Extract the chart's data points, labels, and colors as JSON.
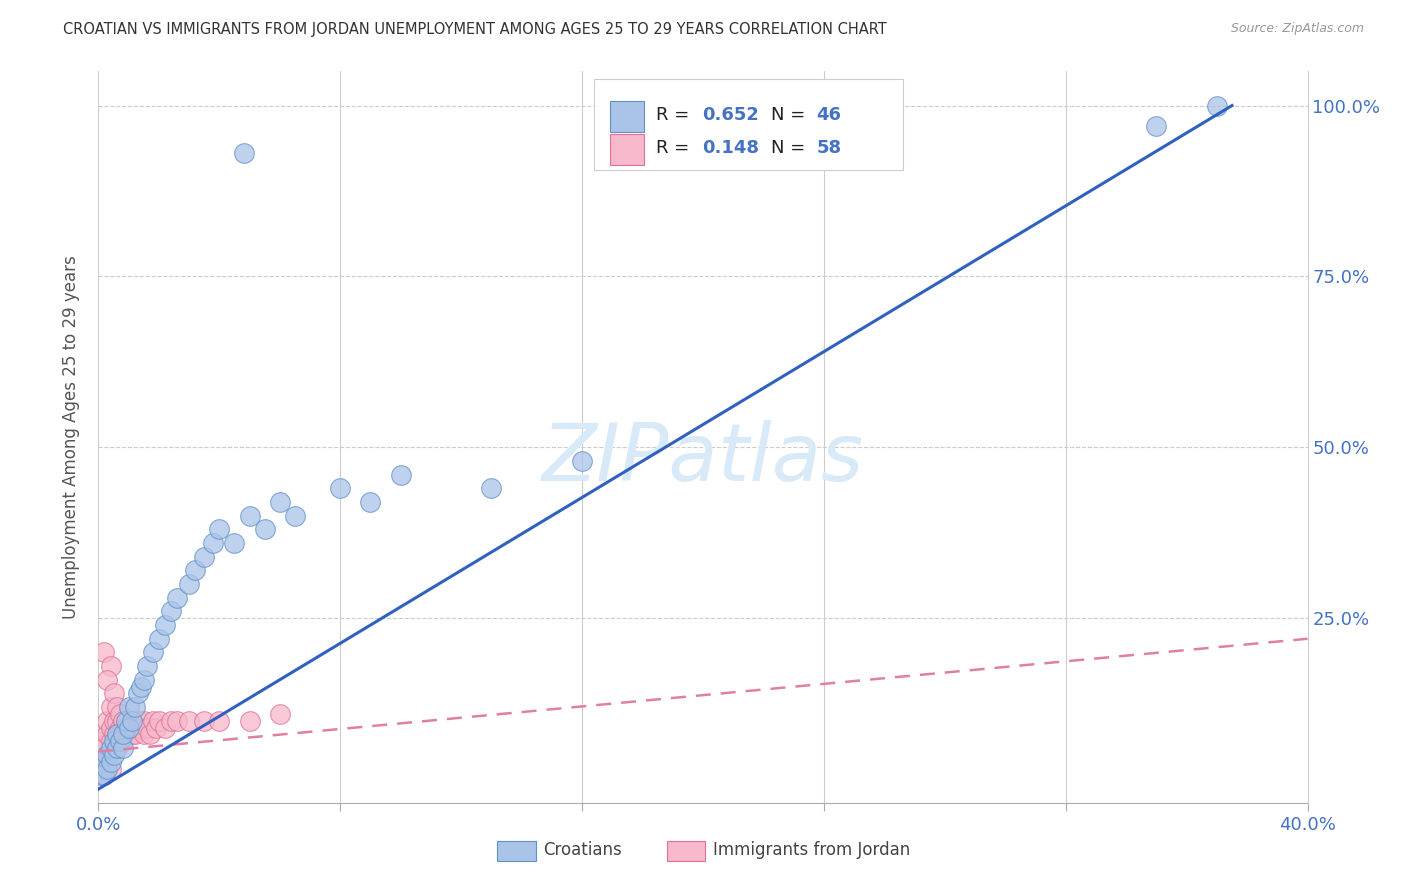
{
  "title": "CROATIAN VS IMMIGRANTS FROM JORDAN UNEMPLOYMENT AMONG AGES 25 TO 29 YEARS CORRELATION CHART",
  "source": "Source: ZipAtlas.com",
  "ylabel": "Unemployment Among Ages 25 to 29 years",
  "xlim": [
    0.0,
    0.4
  ],
  "ylim": [
    -0.02,
    1.05
  ],
  "xtick_positions": [
    0.0,
    0.08,
    0.16,
    0.24,
    0.32,
    0.4
  ],
  "xtick_labels": [
    "0.0%",
    "",
    "",
    "",
    "",
    "40.0%"
  ],
  "ytick_positions": [
    0.0,
    0.25,
    0.5,
    0.75,
    1.0
  ],
  "ytick_labels_right": [
    "",
    "25.0%",
    "50.0%",
    "75.0%",
    "100.0%"
  ],
  "croatians_fill": "#aac4e8",
  "croatians_edge": "#6090c8",
  "jordan_fill": "#f7b8cc",
  "jordan_edge": "#e07090",
  "blue_line_color": "#3060c0",
  "pink_line_color": "#e080a0",
  "axis_color": "#4472c4",
  "title_color": "#333333",
  "source_color": "#999999",
  "ylabel_color": "#555555",
  "grid_color": "#cccccc",
  "legend_text_color": "#222222",
  "legend_value_color": "#4472c4",
  "watermark_color": "#d8eaf8",
  "legend_label1": "Croatians",
  "legend_label2": "Immigrants from Jordan",
  "cr_line_x0": 0.0,
  "cr_line_y0": 0.0,
  "cr_line_x1": 0.375,
  "cr_line_y1": 1.0,
  "jo_line_x0": 0.0,
  "jo_line_y0": 0.055,
  "jo_line_x1": 0.4,
  "jo_line_y1": 0.22,
  "cr_scatter_x": [
    0.001,
    0.002,
    0.002,
    0.003,
    0.003,
    0.004,
    0.004,
    0.005,
    0.005,
    0.006,
    0.006,
    0.007,
    0.008,
    0.008,
    0.009,
    0.01,
    0.01,
    0.011,
    0.012,
    0.013,
    0.014,
    0.015,
    0.016,
    0.018,
    0.02,
    0.022,
    0.024,
    0.026,
    0.03,
    0.032,
    0.035,
    0.038,
    0.04,
    0.045,
    0.05,
    0.055,
    0.06,
    0.065,
    0.08,
    0.09,
    0.1,
    0.13,
    0.16,
    0.048,
    0.37,
    0.35
  ],
  "cr_scatter_y": [
    0.02,
    0.04,
    0.02,
    0.05,
    0.03,
    0.04,
    0.06,
    0.05,
    0.07,
    0.06,
    0.08,
    0.07,
    0.06,
    0.08,
    0.1,
    0.09,
    0.12,
    0.1,
    0.12,
    0.14,
    0.15,
    0.16,
    0.18,
    0.2,
    0.22,
    0.24,
    0.26,
    0.28,
    0.3,
    0.32,
    0.34,
    0.36,
    0.38,
    0.36,
    0.4,
    0.38,
    0.42,
    0.4,
    0.44,
    0.42,
    0.46,
    0.44,
    0.48,
    0.93,
    1.0,
    0.97
  ],
  "jo_scatter_x": [
    0.001,
    0.001,
    0.002,
    0.002,
    0.002,
    0.003,
    0.003,
    0.003,
    0.004,
    0.004,
    0.004,
    0.005,
    0.005,
    0.005,
    0.006,
    0.006,
    0.006,
    0.007,
    0.007,
    0.008,
    0.008,
    0.008,
    0.009,
    0.009,
    0.01,
    0.01,
    0.011,
    0.011,
    0.012,
    0.012,
    0.013,
    0.014,
    0.015,
    0.015,
    0.016,
    0.017,
    0.018,
    0.019,
    0.02,
    0.022,
    0.024,
    0.026,
    0.03,
    0.035,
    0.04,
    0.05,
    0.06,
    0.002,
    0.004,
    0.003,
    0.005,
    0.006,
    0.007,
    0.008,
    0.009,
    0.003,
    0.004,
    0.002
  ],
  "jo_scatter_y": [
    0.05,
    0.03,
    0.07,
    0.04,
    0.06,
    0.08,
    0.05,
    0.1,
    0.07,
    0.09,
    0.12,
    0.08,
    0.1,
    0.06,
    0.08,
    0.1,
    0.07,
    0.09,
    0.08,
    0.1,
    0.08,
    0.07,
    0.09,
    0.08,
    0.1,
    0.09,
    0.08,
    0.1,
    0.09,
    0.08,
    0.1,
    0.09,
    0.08,
    0.1,
    0.09,
    0.08,
    0.1,
    0.09,
    0.1,
    0.09,
    0.1,
    0.1,
    0.1,
    0.1,
    0.1,
    0.1,
    0.11,
    0.2,
    0.18,
    0.16,
    0.14,
    0.12,
    0.11,
    0.1,
    0.09,
    0.04,
    0.03,
    0.02
  ]
}
